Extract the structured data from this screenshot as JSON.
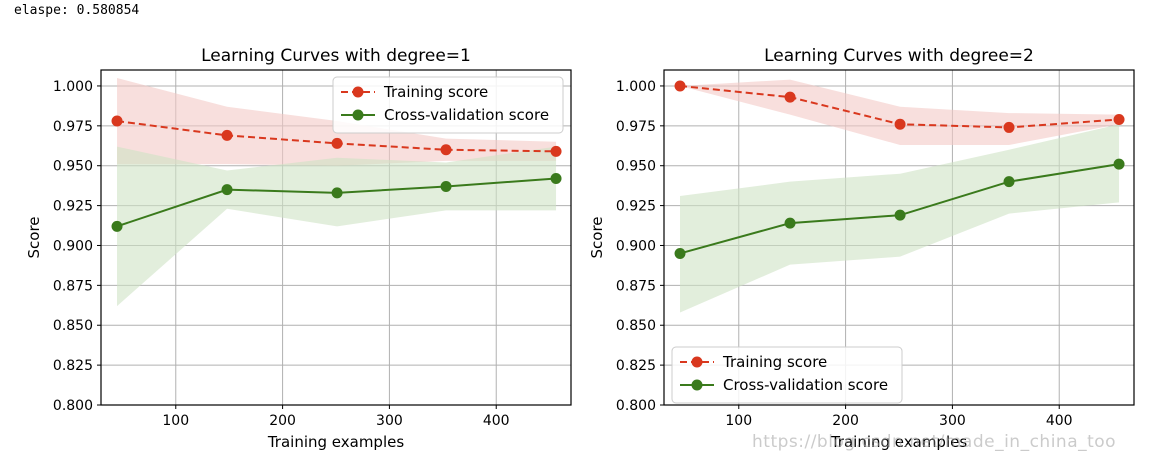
{
  "console": {
    "elapsed_text": "elaspe: 0.580854"
  },
  "watermark": "https://blog.csdn.net/made_in_china_too",
  "colors": {
    "training": "#d9381e",
    "cv": "#3a7a1c",
    "training_band": "#f4c9c7",
    "cv_band": "#cfe3c5",
    "grid": "#b0b0b0"
  },
  "chart_data": [
    {
      "type": "line",
      "title": "Learning Curves with degree=1",
      "xlabel": "Training examples",
      "ylabel": "Score",
      "xlim": [
        30,
        470
      ],
      "ylim": [
        0.8,
        1.01
      ],
      "xticks": [
        100,
        200,
        300,
        400
      ],
      "yticks": [
        0.8,
        0.825,
        0.85,
        0.875,
        0.9,
        0.925,
        0.95,
        0.975,
        1.0
      ],
      "ytick_labels": [
        "0.800",
        "0.825",
        "0.850",
        "0.875",
        "0.900",
        "0.925",
        "0.950",
        "0.975",
        "1.000"
      ],
      "grid": true,
      "legend_loc": "top-right",
      "x": [
        45,
        148,
        251,
        353,
        456
      ],
      "series": [
        {
          "name": "Training score",
          "style": "dashed",
          "values": [
            0.978,
            0.969,
            0.964,
            0.96,
            0.959
          ],
          "upper": [
            1.005,
            0.987,
            0.978,
            0.967,
            0.965
          ],
          "lower": [
            0.951,
            0.951,
            0.95,
            0.953,
            0.953
          ]
        },
        {
          "name": "Cross-validation score",
          "style": "solid",
          "values": [
            0.912,
            0.935,
            0.933,
            0.937,
            0.942
          ],
          "upper": [
            0.962,
            0.947,
            0.955,
            0.952,
            0.962
          ],
          "lower": [
            0.862,
            0.923,
            0.912,
            0.922,
            0.922
          ]
        }
      ]
    },
    {
      "type": "line",
      "title": "Learning Curves with degree=2",
      "xlabel": "Training examples",
      "ylabel": "Score",
      "xlim": [
        30,
        470
      ],
      "ylim": [
        0.8,
        1.01
      ],
      "xticks": [
        100,
        200,
        300,
        400
      ],
      "yticks": [
        0.8,
        0.825,
        0.85,
        0.875,
        0.9,
        0.925,
        0.95,
        0.975,
        1.0
      ],
      "ytick_labels": [
        "0.800",
        "0.825",
        "0.850",
        "0.875",
        "0.900",
        "0.925",
        "0.950",
        "0.975",
        "1.000"
      ],
      "grid": true,
      "legend_loc": "bottom-left",
      "x": [
        45,
        148,
        251,
        353,
        456
      ],
      "series": [
        {
          "name": "Training score",
          "style": "dashed",
          "values": [
            1.0,
            0.993,
            0.976,
            0.974,
            0.979
          ],
          "upper": [
            1.0,
            1.004,
            0.987,
            0.983,
            0.982
          ],
          "lower": [
            1.0,
            0.982,
            0.963,
            0.963,
            0.976
          ]
        },
        {
          "name": "Cross-validation score",
          "style": "solid",
          "values": [
            0.895,
            0.914,
            0.919,
            0.94,
            0.951
          ],
          "upper": [
            0.931,
            0.94,
            0.945,
            0.96,
            0.976
          ],
          "lower": [
            0.858,
            0.888,
            0.893,
            0.92,
            0.927
          ]
        }
      ]
    }
  ]
}
